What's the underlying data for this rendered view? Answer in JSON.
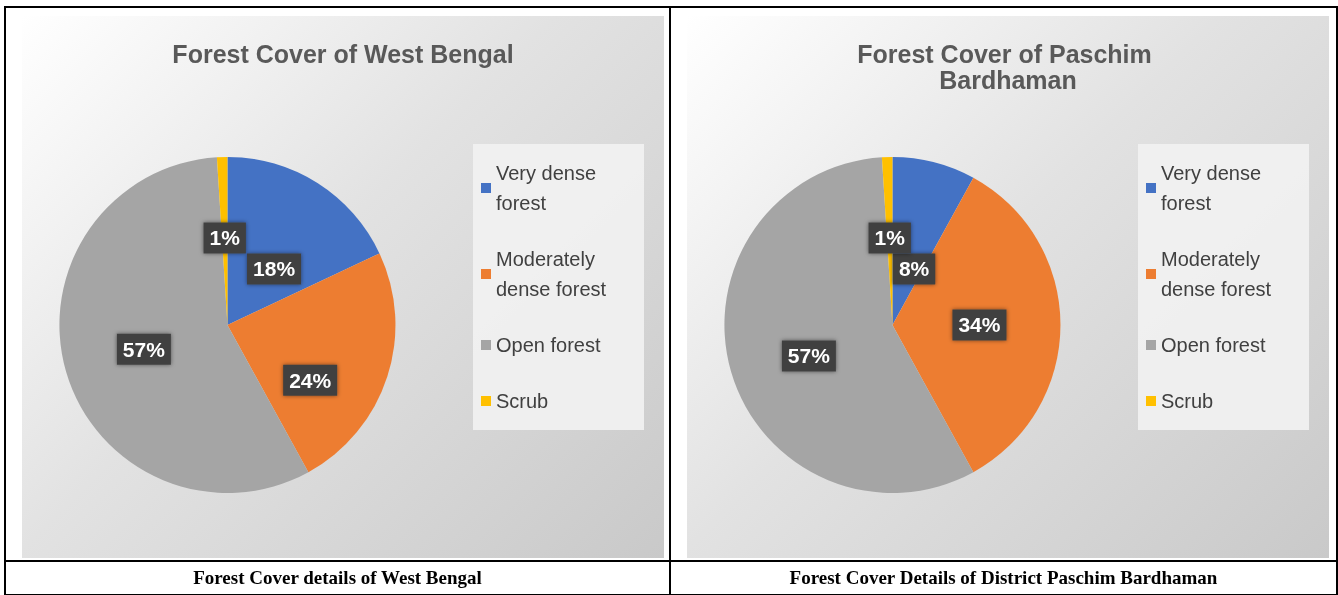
{
  "chart_data": [
    {
      "type": "pie",
      "title": "Forest Cover of West Bengal",
      "categories": [
        "Very dense forest",
        "Moderately dense forest",
        "Open forest",
        "Scrub"
      ],
      "values": [
        18,
        24,
        57,
        1
      ],
      "value_labels": [
        "18%",
        "24%",
        "57%",
        "1%"
      ],
      "colors": [
        "#4472c4",
        "#ed7d31",
        "#a5a5a5",
        "#ffc000"
      ],
      "legend": "right",
      "annotations": [
        "Forest Cover details of West Bengal"
      ]
    },
    {
      "type": "pie",
      "title": "Forest Cover of Paschim Bardhaman",
      "categories": [
        "Very dense forest",
        "Moderately dense forest",
        "Open forest",
        "Scrub"
      ],
      "values": [
        8,
        34,
        57,
        1
      ],
      "value_labels": [
        "8%",
        "34%",
        "57%",
        "1%"
      ],
      "colors": [
        "#4472c4",
        "#ed7d31",
        "#a5a5a5",
        "#ffc000"
      ],
      "legend": "right",
      "annotations": [
        "Forest Cover Details of District Paschim Bardhaman"
      ]
    }
  ]
}
